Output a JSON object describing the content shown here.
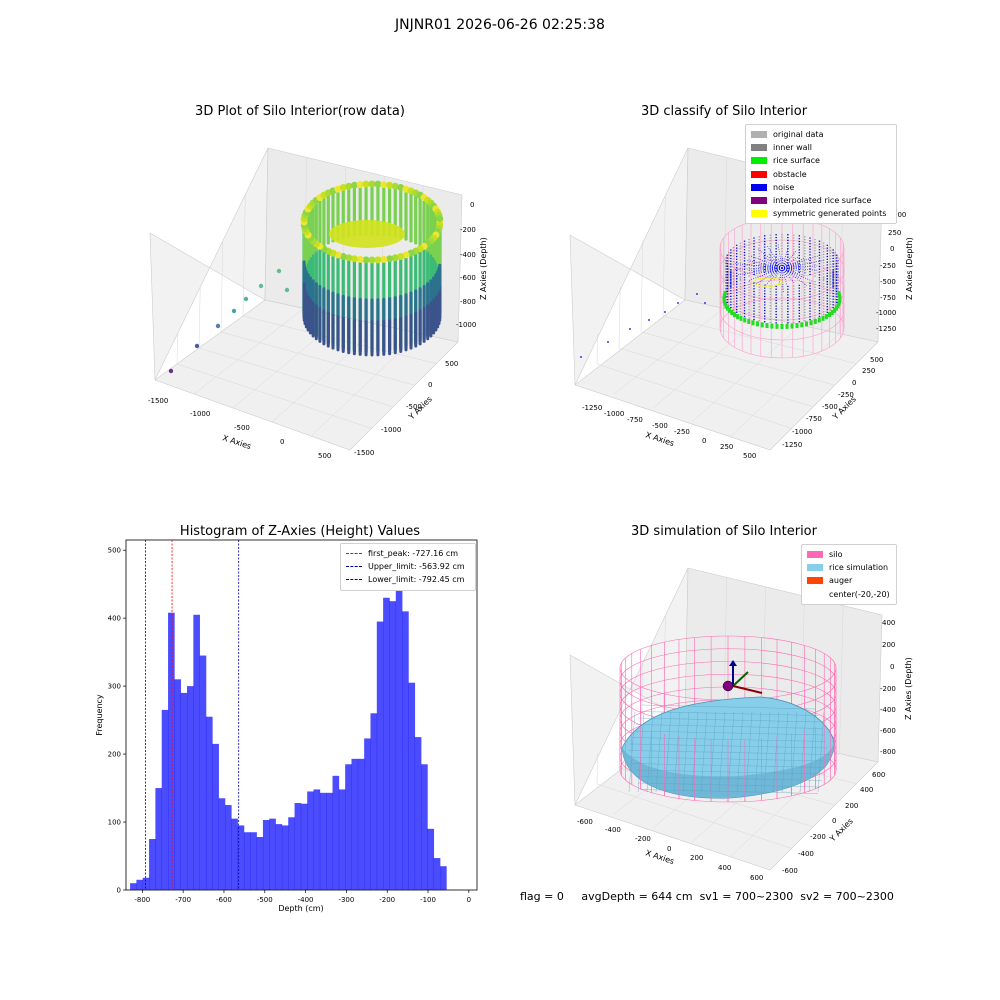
{
  "suptitle": "JNJNR01 2026-06-26 02:25:38",
  "footer": {
    "flag": "flag = 0",
    "avg": "avgDepth = 644 cm",
    "sv1": "sv1 = 700~2300",
    "sv2": "sv2 = 700~2300"
  },
  "chart_data": [
    {
      "type": "scatter",
      "title": "3D Plot of Silo Interior(row data)",
      "xlabel": "X Axies",
      "ylabel": "Y Axies",
      "zlabel": "Z Axies (Depth)",
      "x_ticks": [
        "-1500",
        "-1000",
        "-500",
        "0",
        "500"
      ],
      "y_ticks": [
        "-1500",
        "-1000",
        "-500",
        "0",
        "500"
      ],
      "z_ticks": [
        "0",
        "-200",
        "-400",
        "-600",
        "-800",
        "-1000"
      ],
      "colormap": "viridis",
      "colors": {
        "low": "#440154",
        "mid": "#21918c",
        "high": "#fde725"
      }
    },
    {
      "type": "scatter",
      "title": "3D classify of Silo Interior",
      "xlabel": "X Axies",
      "ylabel": "Y Axies",
      "zlabel": "Z Axies (Depth)",
      "x_ticks": [
        "-1250",
        "-1000",
        "-750",
        "-500",
        "-250",
        "0",
        "250",
        "500"
      ],
      "y_ticks": [
        "500",
        "250",
        "0",
        "-250",
        "-500",
        "-750",
        "-1000",
        "-1250"
      ],
      "z_ticks": [
        "500",
        "250",
        "0",
        "-250",
        "-500",
        "-750",
        "-1000",
        "-1250"
      ],
      "legend": [
        {
          "label": "original data",
          "color": "#b0b0b0"
        },
        {
          "label": "inner wall",
          "color": "#808080"
        },
        {
          "label": "rice surface",
          "color": "#00ee00"
        },
        {
          "label": "obstacle",
          "color": "#ff0000"
        },
        {
          "label": "noise",
          "color": "#0000ee"
        },
        {
          "label": "interpolated rice surface",
          "color": "#800080"
        },
        {
          "label": "symmetric generated points",
          "color": "#ffff00"
        }
      ]
    },
    {
      "type": "bar",
      "title": "Histogram of Z-Axies (Height) Values",
      "xlabel": "Depth (cm)",
      "ylabel": "Frequency",
      "xlim": [
        -840,
        20
      ],
      "ylim": [
        0,
        515
      ],
      "x_ticks": [
        -800,
        -700,
        -600,
        -500,
        -400,
        -300,
        -200,
        -100,
        0
      ],
      "y_ticks": [
        0,
        100,
        200,
        300,
        400,
        500
      ],
      "bin_start": -830,
      "bin_width": 15.5,
      "color": "#0000ff",
      "values": [
        10,
        15,
        18,
        75,
        150,
        265,
        408,
        310,
        290,
        300,
        405,
        345,
        255,
        215,
        135,
        125,
        105,
        95,
        85,
        85,
        78,
        103,
        105,
        97,
        95,
        107,
        128,
        127,
        145,
        148,
        143,
        143,
        168,
        148,
        185,
        193,
        193,
        223,
        260,
        395,
        430,
        425,
        485,
        410,
        305,
        225,
        185,
        90,
        47,
        35
      ],
      "lines": [
        {
          "label": "first_peak: -727.16 cm",
          "x": -727.16,
          "color": "#ff0000"
        },
        {
          "label": "Upper_limit: -563.92 cm",
          "x": -563.92,
          "color": "#0000aa"
        },
        {
          "label": "Lower_limit: -792.45 cm",
          "x": -792.45,
          "color": "#0000aa"
        }
      ]
    },
    {
      "type": "scatter",
      "title": "3D simulation of Silo Interior",
      "xlabel": "X Axies",
      "ylabel": "Y Axies",
      "zlabel": "Z Axies (Depth)",
      "x_ticks": [
        "-600",
        "-400",
        "-200",
        "0",
        "200",
        "400",
        "600"
      ],
      "y_ticks": [
        "600",
        "400",
        "200",
        "0",
        "-200",
        "-400",
        "-600"
      ],
      "z_ticks": [
        "400",
        "200",
        "0",
        "-200",
        "-400",
        "-600",
        "-800"
      ],
      "legend": [
        {
          "label": "silo",
          "color": "#ff69b4"
        },
        {
          "label": "rice simulation",
          "color": "#87ceeb"
        },
        {
          "label": "auger",
          "color": "#ff4500"
        },
        {
          "label": "center(-20,-20)",
          "color": ""
        }
      ]
    }
  ]
}
